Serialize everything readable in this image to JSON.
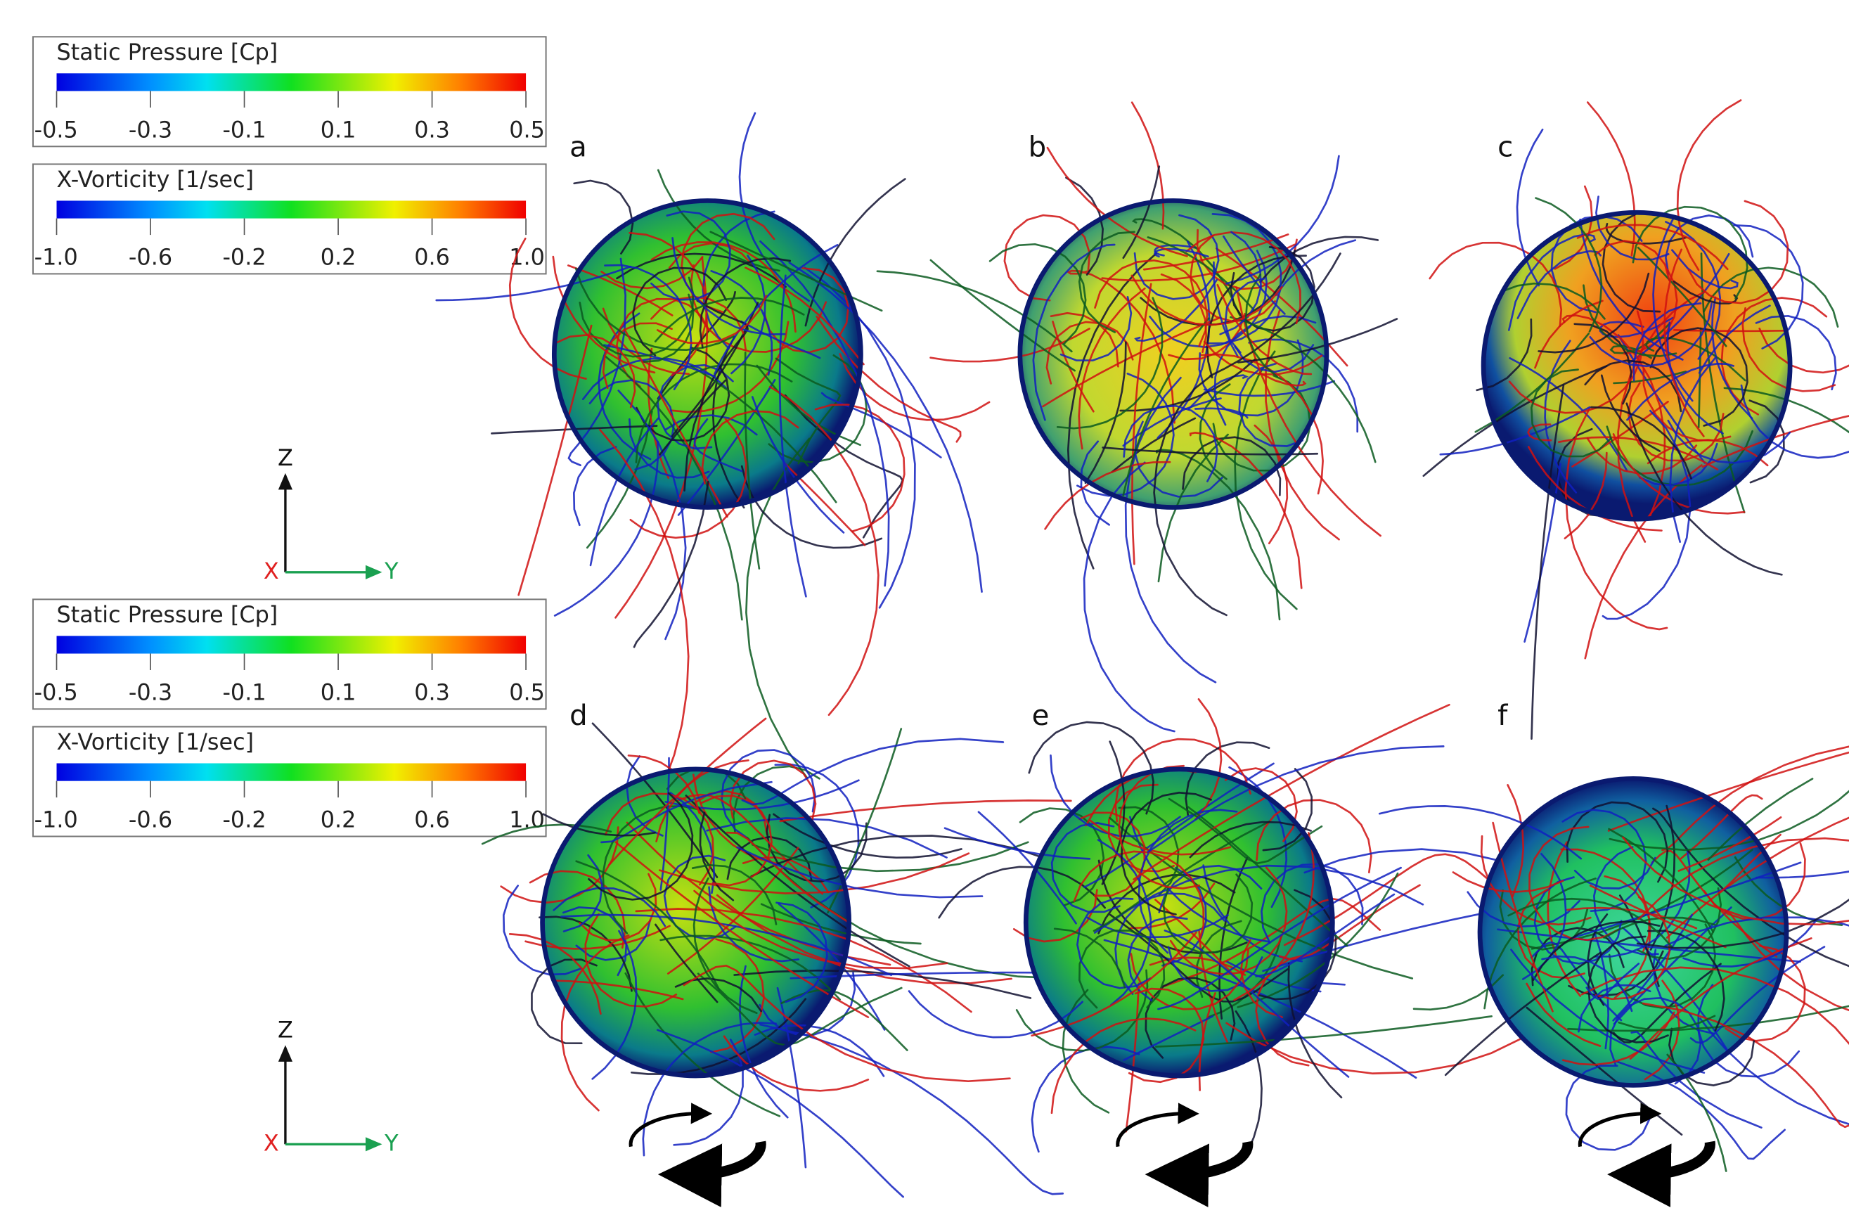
{
  "colorbars": [
    {
      "title": "Static Pressure [Cp]",
      "ticks": [
        "-0.5",
        "-0.3",
        "-0.1",
        "0.1",
        "0.3",
        "0.5"
      ]
    },
    {
      "title": "X-Vorticity [1/sec]",
      "ticks": [
        "-1.0",
        "-0.6",
        "-0.2",
        "0.2",
        "0.6",
        "1.0"
      ]
    },
    {
      "title": "Static Pressure [Cp]",
      "ticks": [
        "-0.5",
        "-0.3",
        "-0.1",
        "0.1",
        "0.3",
        "0.5"
      ]
    },
    {
      "title": "X-Vorticity [1/sec]",
      "ticks": [
        "-1.0",
        "-0.6",
        "-0.2",
        "0.2",
        "0.6",
        "1.0"
      ]
    }
  ],
  "axes": [
    {
      "z": "Z",
      "x": "X",
      "y": "Y"
    },
    {
      "z": "Z",
      "x": "X",
      "y": "Y"
    }
  ],
  "panels": [
    "a",
    "b",
    "c",
    "d",
    "e",
    "f"
  ]
}
